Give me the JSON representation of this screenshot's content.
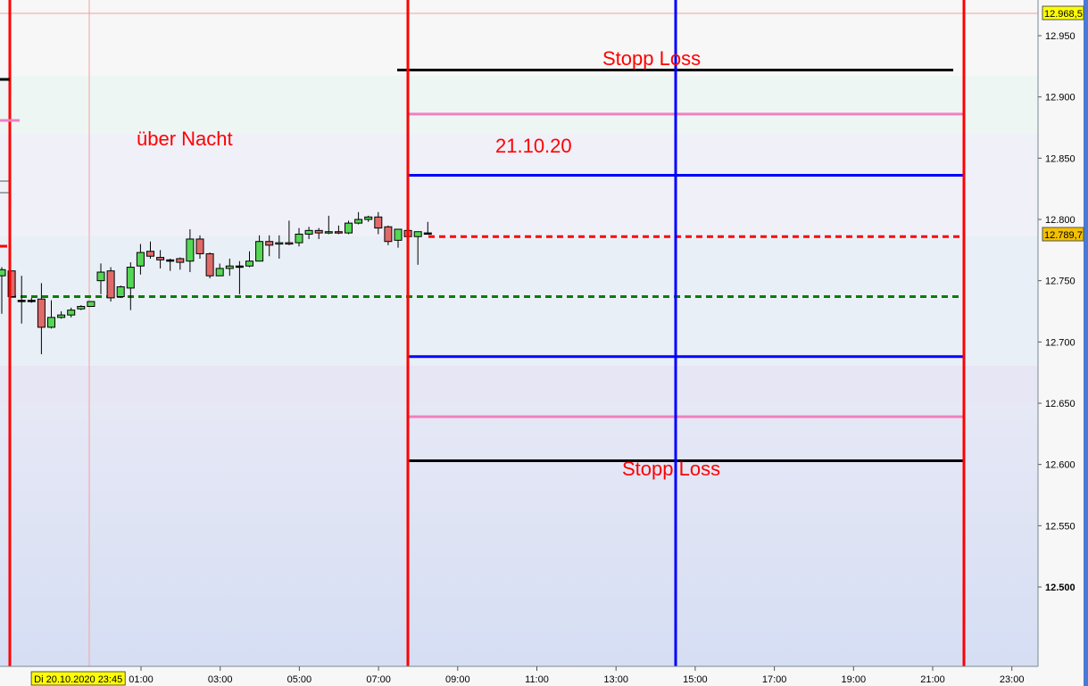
{
  "chart_data": {
    "type": "candlestick",
    "interval_minutes": 15,
    "y_axis": {
      "range": [
        12450,
        12975
      ],
      "ticks": [
        "12.950",
        "12.900",
        "12.850",
        "12.800",
        "12.750",
        "12.700",
        "12.650",
        "12.600",
        "12.550",
        "12.500"
      ],
      "bold_tick": "12.500"
    },
    "x_axis": {
      "ticks": [
        "01:00",
        "03:00",
        "05:00",
        "07:00",
        "09:00",
        "11:00",
        "13:00",
        "15:00",
        "17:00",
        "19:00",
        "21:00",
        "23:00"
      ]
    },
    "cursor_time_label": "Di 20.10.2020 23:45",
    "price_labels": {
      "high_marker": "12.968,5",
      "last_price": "12.789,7"
    },
    "candles": [
      [
        12754,
        12761,
        12723,
        12759
      ],
      [
        12758,
        12758,
        12737,
        12737
      ],
      [
        12734,
        12754,
        12715,
        12734
      ],
      [
        12734,
        12736,
        12732,
        12734
      ],
      [
        12735,
        12748,
        12690,
        12712
      ],
      [
        12712,
        12734,
        12711,
        12720
      ],
      [
        12720,
        12725,
        12719,
        12722
      ],
      [
        12722,
        12728,
        12720,
        12726
      ],
      [
        12727,
        12730,
        12726,
        12729
      ],
      [
        12729,
        12733,
        12729,
        12733
      ],
      [
        12750,
        12764,
        12739,
        12757
      ],
      [
        12758,
        12761,
        12733,
        12736
      ],
      [
        12737,
        12746,
        12736,
        12745
      ],
      [
        12744,
        12765,
        12726,
        12761
      ],
      [
        12762,
        12780,
        12755,
        12773
      ],
      [
        12774,
        12782,
        12768,
        12770
      ],
      [
        12769,
        12775,
        12760,
        12767
      ],
      [
        12767,
        12768,
        12758,
        12767
      ],
      [
        12768,
        12769,
        12759,
        12765
      ],
      [
        12766,
        12792,
        12757,
        12784
      ],
      [
        12784,
        12787,
        12768,
        12772
      ],
      [
        12772,
        12773,
        12752,
        12754
      ],
      [
        12754,
        12764,
        12754,
        12760
      ],
      [
        12760,
        12768,
        12754,
        12762
      ],
      [
        12762,
        12766,
        12739,
        12762
      ],
      [
        12762,
        12774,
        12761,
        12766
      ],
      [
        12766,
        12787,
        12766,
        12782
      ],
      [
        12782,
        12787,
        12770,
        12779
      ],
      [
        12780,
        12787,
        12768,
        12781
      ],
      [
        12781,
        12799,
        12779,
        12780
      ],
      [
        12781,
        12793,
        12778,
        12788
      ],
      [
        12788,
        12794,
        12784,
        12791
      ],
      [
        12791,
        12793,
        12784,
        12789
      ],
      [
        12789,
        12803,
        12788,
        12790
      ],
      [
        12790,
        12795,
        12788,
        12789
      ],
      [
        12789,
        12799,
        12788,
        12797
      ],
      [
        12797,
        12806,
        12796,
        12800
      ],
      [
        12800,
        12803,
        12798,
        12802
      ],
      [
        12802,
        12806,
        12788,
        12793
      ],
      [
        12794,
        12795,
        12779,
        12782
      ],
      [
        12783,
        12792,
        12777,
        12792
      ],
      [
        12791,
        12791,
        12786,
        12786
      ],
      [
        12786,
        12790,
        12763,
        12790
      ],
      [
        12789,
        12798,
        12788,
        12789
      ]
    ],
    "levels": [
      {
        "name": "stop-loss-upper",
        "price": 12922,
        "color": "#000000",
        "label": "Stopp Loss"
      },
      {
        "name": "pink-upper",
        "price": 12886,
        "color": "#f080c0"
      },
      {
        "name": "blue-upper",
        "price": 12836,
        "color": "#0000ff"
      },
      {
        "name": "last-price-dotted",
        "price": 12786,
        "color": "#ff0000",
        "style": "dotted"
      },
      {
        "name": "green-dotted",
        "price": 12737,
        "color": "#008000",
        "style": "dotted"
      },
      {
        "name": "blue-lower",
        "price": 12688,
        "color": "#0000ff"
      },
      {
        "name": "pink-lower",
        "price": 12639,
        "color": "#f080c0"
      },
      {
        "name": "stop-loss-lower",
        "price": 12603,
        "color": "#000000",
        "label": "Stopp Loss"
      }
    ],
    "colors": {
      "up": "#55d655",
      "down": "#e06a6a",
      "session_line": "#ff0000",
      "mid_line": "#0000ff"
    }
  },
  "annotations": {
    "overnight": "über Nacht",
    "date": "21.10.20",
    "stop_loss_top": "Stopp Loss",
    "stop_loss_bottom": "Stopp Loss"
  }
}
